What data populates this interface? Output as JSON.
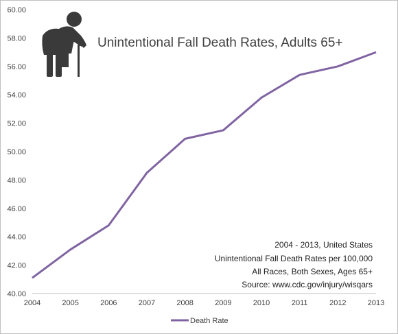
{
  "chart_data": {
    "type": "line",
    "title": "Unintentional Fall Death Rates, Adults 65+",
    "x": [
      "2004",
      "2005",
      "2006",
      "2007",
      "2008",
      "2009",
      "2010",
      "2011",
      "2012",
      "2013"
    ],
    "series": [
      {
        "name": "Death Rate",
        "color": "#8064a2",
        "values": [
          41.1,
          43.1,
          44.8,
          48.5,
          50.9,
          51.5,
          53.8,
          55.4,
          56.0,
          57.0
        ]
      }
    ],
    "y_ticks": [
      "40.00",
      "42.00",
      "44.00",
      "46.00",
      "48.00",
      "50.00",
      "52.00",
      "54.00",
      "56.00",
      "58.00",
      "60.00"
    ],
    "ylim": [
      40,
      60
    ],
    "grid": false,
    "legend_position": "bottom",
    "notes": [
      "2004 - 2013, United States",
      "Unintentional Fall Death Rates per 100,000",
      "All Races, Both Sexes, Ages 65+",
      "Source: www.cdc.gov/injury/wisqars"
    ],
    "icon": "elderly-person-with-cane-icon",
    "icon_color": "#3a3a3a",
    "text_color": "#404040"
  }
}
